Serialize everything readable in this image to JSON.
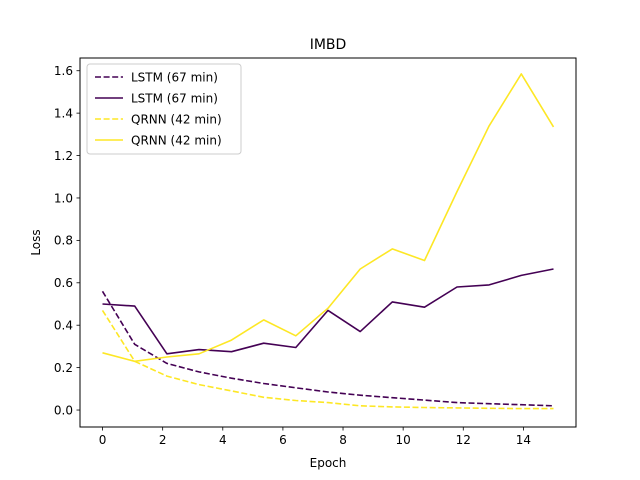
{
  "chart_data": {
    "type": "line",
    "title": "IMBD",
    "xlabel": "Epoch",
    "ylabel": "Loss",
    "xlim": [
      -0.75,
      15.75
    ],
    "ylim": [
      -0.08,
      1.66
    ],
    "xticks": [
      0,
      2,
      4,
      6,
      8,
      10,
      12,
      14
    ],
    "xtick_labels": [
      "0",
      "2",
      "4",
      "6",
      "8",
      "10",
      "12",
      "14"
    ],
    "yticks": [
      0.0,
      0.2,
      0.4,
      0.6,
      0.8,
      1.0,
      1.2,
      1.4,
      1.6
    ],
    "ytick_labels": [
      "0.0",
      "0.2",
      "0.4",
      "0.6",
      "0.8",
      "1.0",
      "1.2",
      "1.4",
      "1.6"
    ],
    "grid": false,
    "legend_position": "top-left",
    "x": [
      0,
      1.07,
      2.14,
      3.21,
      4.29,
      5.36,
      6.43,
      7.5,
      8.57,
      9.64,
      10.71,
      11.79,
      12.86,
      13.93,
      15
    ],
    "series": [
      {
        "name": "LSTM (67 min)",
        "color": "#440154",
        "dash": true,
        "values": [
          0.56,
          0.31,
          0.22,
          0.18,
          0.15,
          0.125,
          0.105,
          0.085,
          0.07,
          0.058,
          0.047,
          0.035,
          0.03,
          0.025,
          0.02
        ]
      },
      {
        "name": "LSTM (67 min)",
        "color": "#440154",
        "dash": false,
        "values": [
          0.5,
          0.49,
          0.265,
          0.285,
          0.275,
          0.315,
          0.295,
          0.47,
          0.37,
          0.51,
          0.485,
          0.58,
          0.59,
          0.635,
          0.665
        ]
      },
      {
        "name": "QRNN (42 min)",
        "color": "#fde725",
        "dash": true,
        "values": [
          0.47,
          0.23,
          0.16,
          0.12,
          0.09,
          0.06,
          0.045,
          0.035,
          0.02,
          0.015,
          0.012,
          0.01,
          0.008,
          0.007,
          0.007
        ]
      },
      {
        "name": "QRNN (42 min)",
        "color": "#fde725",
        "dash": false,
        "values": [
          0.27,
          0.23,
          0.25,
          0.265,
          0.33,
          0.425,
          0.35,
          0.48,
          0.665,
          0.76,
          0.705,
          1.03,
          1.34,
          1.585,
          1.335
        ]
      }
    ]
  }
}
